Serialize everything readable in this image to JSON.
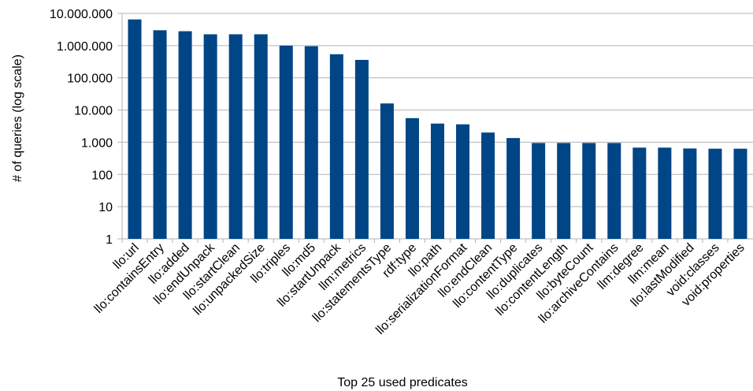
{
  "chart_data": {
    "type": "bar",
    "title": "",
    "xlabel": "Top 25 used predicates",
    "ylabel": "# of queries (log scale)",
    "y_scale": "log",
    "ylim": [
      1,
      10000000
    ],
    "y_ticks": [
      1,
      10,
      100,
      1000,
      10000,
      100000,
      1000000,
      10000000
    ],
    "y_tick_labels": [
      "1",
      "10",
      "100",
      "1.000",
      "10.000",
      "100.000",
      "1.000.000",
      "10.000.000"
    ],
    "grid": true,
    "legend": "none",
    "bar_color": "#004586",
    "categories": [
      "llo:url",
      "llo:containsEntry",
      "llo:added",
      "llo:endUnpack",
      "llo:startClean",
      "llo:unpackedSize",
      "llo:triples",
      "llo:md5",
      "llo:startUnpack",
      "llm:metrics",
      "llo:statementsType",
      "rdf:type",
      "llo:path",
      "llo:serializationFormat",
      "llo:endClean",
      "llo:contentType",
      "llo:duplicates",
      "llo:contentLength",
      "llo:byteCount",
      "llo:archiveContains",
      "llm:degree",
      "llm:mean",
      "llo:lastModified",
      "void:classes",
      "void:properties"
    ],
    "values": [
      6500000,
      3000000,
      2800000,
      2250000,
      2250000,
      2250000,
      1000000,
      960000,
      540000,
      360000,
      16000,
      5600,
      3800,
      3600,
      2000,
      1350,
      950,
      950,
      950,
      950,
      680,
      680,
      640,
      630,
      630
    ]
  }
}
